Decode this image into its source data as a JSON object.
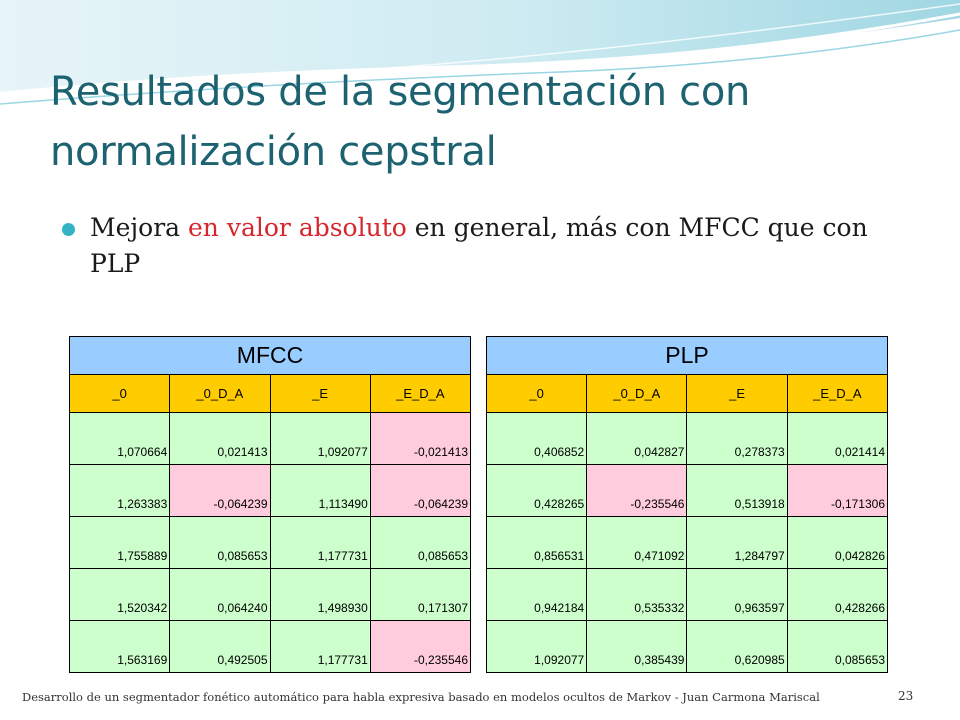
{
  "slide": {
    "title_line1": "Resultados de la segmentación con",
    "title_line2": "normalización cepstral",
    "bullet": {
      "pre": "Mejora ",
      "highlight": "en valor absoluto",
      "post": " en general, más con MFCC que con PLP"
    },
    "footer": "Desarrollo de un segmentador fonético automático para habla expresiva basado en modelos ocultos de Markov - Juan Carmona Mariscal",
    "page_number": "23",
    "colors": {
      "title": "#1d6270",
      "highlight": "#d5272d",
      "table_header": "#99ccff",
      "column_header": "#ffcc00",
      "cell_positive": "#ccffcc",
      "cell_negative": "#ffccdd"
    }
  },
  "tables": {
    "mfcc": {
      "title": "MFCC",
      "columns": [
        "_0",
        "_0_D_A",
        "_E",
        "_E_D_A"
      ],
      "rows": [
        [
          "1,070664",
          "0,021413",
          "1,092077",
          "-0,021413"
        ],
        [
          "1,263383",
          "-0,064239",
          "1,113490",
          "-0,064239"
        ],
        [
          "1,755889",
          "0,085653",
          "1,177731",
          "0,085653"
        ],
        [
          "1,520342",
          "0,064240",
          "1,498930",
          "0,171307"
        ],
        [
          "1,563169",
          "0,492505",
          "1,177731",
          "-0,235546"
        ]
      ]
    },
    "plp": {
      "title": "PLP",
      "columns": [
        "_0",
        "_0_D_A",
        "_E",
        "_E_D_A"
      ],
      "rows": [
        [
          "0,406852",
          "0,042827",
          "0,278373",
          "0,021414"
        ],
        [
          "0,428265",
          "-0,235546",
          "0,513918",
          "-0,171306"
        ],
        [
          "0,856531",
          "0,471092",
          "1,284797",
          "0,042826"
        ],
        [
          "0,942184",
          "0,535332",
          "0,963597",
          "0,428266"
        ],
        [
          "1,092077",
          "0,385439",
          "0,620985",
          "0,085653"
        ]
      ]
    }
  }
}
